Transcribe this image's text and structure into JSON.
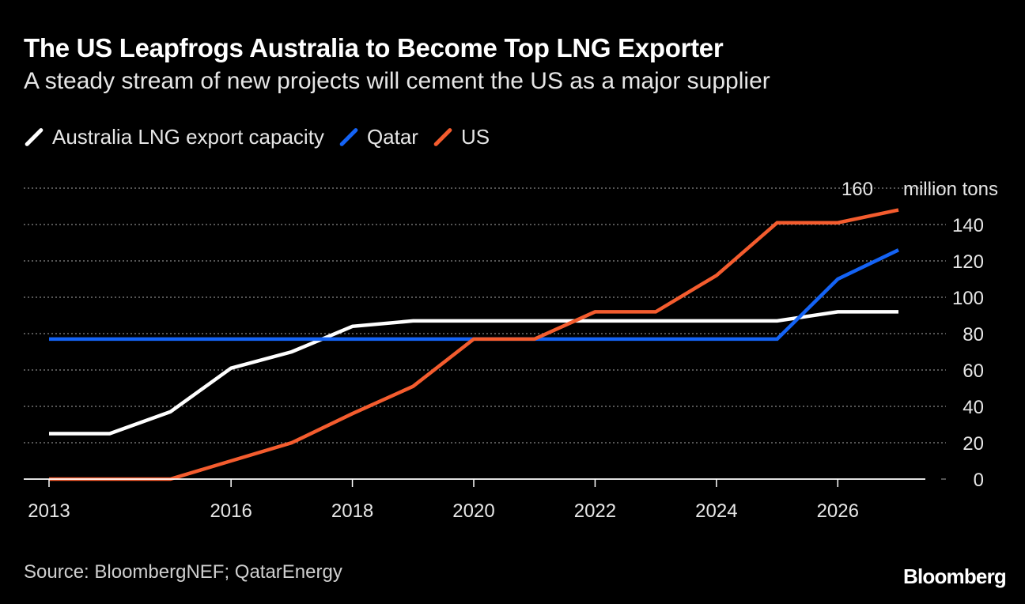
{
  "colors": {
    "background": "#000000",
    "australia": "#ffffff",
    "qatar": "#1463f5",
    "us": "#f45c2e",
    "grid": "#888888",
    "axis": "#ffffff",
    "text": "#e6e6e6"
  },
  "header": {
    "title": "The US Leapfrogs Australia to Become Top LNG Exporter",
    "subtitle": "A steady stream of new projects will cement the US as a major supplier"
  },
  "footer": {
    "source": "Source: BloombergNEF; QatarEnergy",
    "brand": "Bloomberg"
  },
  "chart_data": {
    "type": "line",
    "title": "The US Leapfrogs Australia to Become Top LNG Exporter",
    "subtitle": "A steady stream of new projects will cement the US as a major supplier",
    "xlabel": "",
    "ylabel": "million tons",
    "xlim": [
      2013,
      2027.5
    ],
    "ylim": [
      0,
      160
    ],
    "grid": true,
    "legend_position": "top-left",
    "x_ticks": [
      2013,
      2016,
      2018,
      2020,
      2022,
      2024,
      2026
    ],
    "y_ticks": [
      {
        "value": 0,
        "label": "0"
      },
      {
        "value": 20,
        "label": "20"
      },
      {
        "value": 40,
        "label": "40"
      },
      {
        "value": 60,
        "label": "60"
      },
      {
        "value": 80,
        "label": "80"
      },
      {
        "value": 100,
        "label": "100"
      },
      {
        "value": 120,
        "label": "120"
      },
      {
        "value": 140,
        "label": "140"
      },
      {
        "value": 160,
        "label": "160",
        "unit": "million tons"
      }
    ],
    "x": [
      2013,
      2014,
      2015,
      2016,
      2017,
      2018,
      2019,
      2020,
      2021,
      2022,
      2023,
      2024,
      2025,
      2026,
      2027
    ],
    "series": [
      {
        "name": "Australia LNG export capacity",
        "key": "australia",
        "values": [
          25,
          25,
          37,
          61,
          70,
          84,
          87,
          87,
          87,
          87,
          87,
          87,
          87,
          92,
          92
        ]
      },
      {
        "name": "Qatar",
        "key": "qatar",
        "values": [
          77,
          77,
          77,
          77,
          77,
          77,
          77,
          77,
          77,
          77,
          77,
          77,
          77,
          110,
          126
        ]
      },
      {
        "name": "US",
        "key": "us",
        "values": [
          0,
          0,
          0,
          10,
          20,
          36,
          51,
          77,
          77,
          92,
          92,
          112,
          141,
          141,
          148
        ]
      }
    ]
  }
}
